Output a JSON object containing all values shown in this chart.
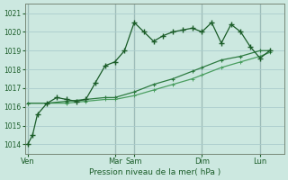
{
  "bg_color": "#cce8e0",
  "grid_color": "#aacccc",
  "line_color_dark": "#1a5c28",
  "line_color_mid": "#2d7a40",
  "line_color_light": "#4a9e60",
  "xlabel": "Pression niveau de la mer( hPa )",
  "ylim": [
    1013.5,
    1021.5
  ],
  "yticks": [
    1014,
    1015,
    1016,
    1017,
    1018,
    1019,
    1020,
    1021
  ],
  "day_labels": [
    "Ven",
    "Mar",
    "Sam",
    "Dim",
    "Lun"
  ],
  "day_tick_pos": [
    0,
    9,
    11,
    18,
    24
  ],
  "vline_pos": [
    0,
    9,
    11,
    18,
    24
  ],
  "xlim": [
    -0.3,
    26.5
  ],
  "series1_x": [
    0,
    0.5,
    1,
    2,
    3,
    4,
    5,
    6,
    7,
    8,
    9,
    10,
    11,
    12,
    13,
    14,
    15,
    16,
    17,
    18,
    19,
    20,
    21,
    22,
    23,
    24,
    25
  ],
  "series1_y": [
    1014.0,
    1014.5,
    1015.6,
    1016.2,
    1016.5,
    1016.4,
    1016.3,
    1016.4,
    1017.3,
    1018.2,
    1018.4,
    1019.0,
    1020.5,
    1020.0,
    1019.5,
    1019.8,
    1020.0,
    1020.1,
    1020.2,
    1020.0,
    1020.5,
    1019.4,
    1020.4,
    1020.0,
    1019.2,
    1018.6,
    1019.0
  ],
  "series2_x": [
    0,
    2,
    4,
    6,
    8,
    9,
    11,
    13,
    15,
    17,
    18,
    20,
    22,
    24,
    25
  ],
  "series2_y": [
    1016.2,
    1016.2,
    1016.3,
    1016.4,
    1016.5,
    1016.5,
    1016.8,
    1017.2,
    1017.5,
    1017.9,
    1018.1,
    1018.5,
    1018.7,
    1019.0,
    1019.0
  ],
  "series3_x": [
    0,
    2,
    4,
    6,
    8,
    9,
    11,
    13,
    15,
    17,
    18,
    20,
    22,
    24,
    25
  ],
  "series3_y": [
    1016.2,
    1016.2,
    1016.2,
    1016.3,
    1016.4,
    1016.4,
    1016.6,
    1016.9,
    1017.2,
    1017.5,
    1017.7,
    1018.1,
    1018.4,
    1018.7,
    1018.9
  ]
}
